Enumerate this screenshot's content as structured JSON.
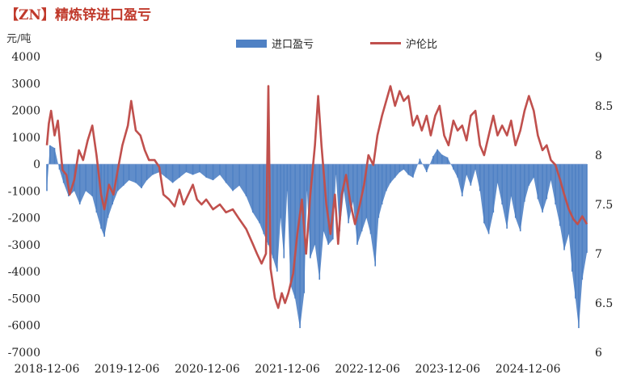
{
  "title": "【ZN】精炼锌进口盈亏",
  "unit_left": "元/吨",
  "colors": {
    "bar": "#4f81c4",
    "line": "#c0504d",
    "title": "#c0392b"
  },
  "chart_data": {
    "type": "bar+line",
    "x_tick_labels": [
      "2018-12-06",
      "2019-12-06",
      "2020-12-06",
      "2021-12-06",
      "2022-12-06",
      "2023-12-06",
      "2024-12-06"
    ],
    "x_range": [
      "2018-12-06",
      "2025-08-31"
    ],
    "y_left": {
      "label": "元/吨",
      "min": -7000,
      "max": 4000,
      "ticks": [
        4000,
        3000,
        2000,
        1000,
        0,
        -1000,
        -2000,
        -3000,
        -4000,
        -5000,
        -6000,
        -7000
      ]
    },
    "y_right": {
      "label": "",
      "min": 6,
      "max": 9,
      "ticks": [
        9,
        8.5,
        8,
        7.5,
        7,
        6.5,
        6
      ]
    },
    "grid": false,
    "legend_position": "top-center",
    "series": [
      {
        "name": "进口盈亏",
        "type": "bar",
        "axis": "left",
        "color": "#4f81c4",
        "points": [
          [
            "2018-12-06",
            -1000
          ],
          [
            "2018-12-20",
            700
          ],
          [
            "2019-01-10",
            600
          ],
          [
            "2019-02-01",
            -200
          ],
          [
            "2019-02-20",
            -700
          ],
          [
            "2019-03-15",
            -1200
          ],
          [
            "2019-04-10",
            -1000
          ],
          [
            "2019-05-05",
            -1500
          ],
          [
            "2019-06-01",
            -1000
          ],
          [
            "2019-07-01",
            -1200
          ],
          [
            "2019-07-20",
            -1800
          ],
          [
            "2019-08-10",
            -2400
          ],
          [
            "2019-08-25",
            -2700
          ],
          [
            "2019-09-10",
            -2000
          ],
          [
            "2019-10-01",
            -1500
          ],
          [
            "2019-10-25",
            -1000
          ],
          [
            "2019-11-20",
            -800
          ],
          [
            "2019-12-15",
            -600
          ],
          [
            "2020-01-15",
            -700
          ],
          [
            "2020-02-10",
            -900
          ],
          [
            "2020-03-05",
            -600
          ],
          [
            "2020-04-01",
            -400
          ],
          [
            "2020-05-01",
            -300
          ],
          [
            "2020-06-01",
            -500
          ],
          [
            "2020-07-01",
            -700
          ],
          [
            "2020-08-01",
            -500
          ],
          [
            "2020-09-01",
            -300
          ],
          [
            "2020-10-01",
            -400
          ],
          [
            "2020-11-01",
            -300
          ],
          [
            "2020-12-01",
            -500
          ],
          [
            "2021-01-01",
            -600
          ],
          [
            "2021-02-01",
            -400
          ],
          [
            "2021-03-01",
            -700
          ],
          [
            "2021-04-01",
            -1000
          ],
          [
            "2021-05-01",
            -800
          ],
          [
            "2021-06-01",
            -1200
          ],
          [
            "2021-07-01",
            -1800
          ],
          [
            "2021-08-01",
            -2200
          ],
          [
            "2021-08-20",
            -2600
          ],
          [
            "2021-09-10",
            -3000
          ],
          [
            "2021-10-01",
            -3500
          ],
          [
            "2021-10-20",
            -4000
          ],
          [
            "2021-11-05",
            -2000
          ],
          [
            "2021-11-20",
            -3500
          ],
          [
            "2021-12-05",
            -1000
          ],
          [
            "2021-12-20",
            -4500
          ],
          [
            "2022-01-10",
            -5000
          ],
          [
            "2022-02-01",
            -6100
          ],
          [
            "2022-02-20",
            -4800
          ],
          [
            "2022-03-05",
            -1000
          ],
          [
            "2022-03-20",
            -3500
          ],
          [
            "2022-04-10",
            -3000
          ],
          [
            "2022-05-01",
            -4300
          ],
          [
            "2022-05-20",
            -2500
          ],
          [
            "2022-06-10",
            -3000
          ],
          [
            "2022-07-01",
            -2800
          ],
          [
            "2022-07-15",
            -400
          ],
          [
            "2022-08-01",
            -2500
          ],
          [
            "2022-08-20",
            -1000
          ],
          [
            "2022-09-10",
            -2200
          ],
          [
            "2022-10-01",
            -1400
          ],
          [
            "2022-10-20",
            -3000
          ],
          [
            "2022-11-10",
            -2500
          ],
          [
            "2022-12-01",
            -2000
          ],
          [
            "2022-12-20",
            -2600
          ],
          [
            "2023-01-10",
            -3800
          ],
          [
            "2023-01-25",
            -2000
          ],
          [
            "2023-02-10",
            -1500
          ],
          [
            "2023-03-01",
            -1000
          ],
          [
            "2023-03-20",
            -700
          ],
          [
            "2023-04-10",
            -500
          ],
          [
            "2023-05-01",
            -300
          ],
          [
            "2023-05-20",
            -200
          ],
          [
            "2023-06-10",
            -400
          ],
          [
            "2023-07-01",
            -500
          ],
          [
            "2023-08-01",
            200
          ],
          [
            "2023-09-01",
            -300
          ],
          [
            "2023-10-01",
            300
          ],
          [
            "2023-10-20",
            550
          ],
          [
            "2023-11-10",
            350
          ],
          [
            "2023-12-05",
            250
          ],
          [
            "2024-01-01",
            -200
          ],
          [
            "2024-01-20",
            -500
          ],
          [
            "2024-02-10",
            -1200
          ],
          [
            "2024-03-01",
            -400
          ],
          [
            "2024-03-20",
            -800
          ],
          [
            "2024-04-10",
            -200
          ],
          [
            "2024-05-01",
            -1000
          ],
          [
            "2024-05-20",
            -2200
          ],
          [
            "2024-06-10",
            -2600
          ],
          [
            "2024-07-01",
            -1800
          ],
          [
            "2024-07-20",
            -700
          ],
          [
            "2024-08-10",
            -1500
          ],
          [
            "2024-09-01",
            -2400
          ],
          [
            "2024-09-20",
            -1200
          ],
          [
            "2024-10-10",
            -2000
          ],
          [
            "2024-11-01",
            -2500
          ],
          [
            "2024-11-20",
            -1400
          ],
          [
            "2024-12-10",
            -800
          ],
          [
            "2025-01-01",
            -500
          ],
          [
            "2025-01-20",
            -1300
          ],
          [
            "2025-02-10",
            -1800
          ],
          [
            "2025-03-01",
            -1300
          ],
          [
            "2025-03-20",
            -600
          ],
          [
            "2025-04-10",
            -1500
          ],
          [
            "2025-05-01",
            -2300
          ],
          [
            "2025-05-20",
            -3200
          ],
          [
            "2025-06-10",
            -2600
          ],
          [
            "2025-06-25",
            -4000
          ],
          [
            "2025-07-10",
            -5000
          ],
          [
            "2025-07-25",
            -6100
          ],
          [
            "2025-08-10",
            -4300
          ],
          [
            "2025-08-31",
            -3300
          ]
        ]
      },
      {
        "name": "沪伦比",
        "type": "line",
        "axis": "right",
        "color": "#c0504d",
        "points": [
          [
            "2018-12-06",
            8.1
          ],
          [
            "2018-12-15",
            8.32
          ],
          [
            "2018-12-25",
            8.45
          ],
          [
            "2019-01-10",
            8.2
          ],
          [
            "2019-01-25",
            8.35
          ],
          [
            "2019-02-15",
            7.85
          ],
          [
            "2019-03-05",
            7.8
          ],
          [
            "2019-03-20",
            7.6
          ],
          [
            "2019-04-10",
            7.75
          ],
          [
            "2019-05-01",
            8.05
          ],
          [
            "2019-05-20",
            7.95
          ],
          [
            "2019-06-10",
            8.15
          ],
          [
            "2019-07-01",
            8.3
          ],
          [
            "2019-07-20",
            8.0
          ],
          [
            "2019-08-10",
            7.6
          ],
          [
            "2019-08-25",
            7.45
          ],
          [
            "2019-09-15",
            7.7
          ],
          [
            "2019-10-05",
            7.6
          ],
          [
            "2019-10-25",
            7.85
          ],
          [
            "2019-11-15",
            8.1
          ],
          [
            "2019-12-10",
            8.3
          ],
          [
            "2019-12-25",
            8.55
          ],
          [
            "2020-01-15",
            8.25
          ],
          [
            "2020-02-05",
            8.2
          ],
          [
            "2020-02-25",
            8.05
          ],
          [
            "2020-03-15",
            7.95
          ],
          [
            "2020-04-10",
            7.95
          ],
          [
            "2020-05-01",
            7.88
          ],
          [
            "2020-05-20",
            7.6
          ],
          [
            "2020-06-15",
            7.55
          ],
          [
            "2020-07-10",
            7.48
          ],
          [
            "2020-08-01",
            7.65
          ],
          [
            "2020-08-20",
            7.5
          ],
          [
            "2020-09-10",
            7.6
          ],
          [
            "2020-10-01",
            7.7
          ],
          [
            "2020-10-20",
            7.55
          ],
          [
            "2020-11-10",
            7.5
          ],
          [
            "2020-12-01",
            7.55
          ],
          [
            "2021-01-01",
            7.45
          ],
          [
            "2021-02-01",
            7.5
          ],
          [
            "2021-03-01",
            7.42
          ],
          [
            "2021-04-01",
            7.45
          ],
          [
            "2021-05-01",
            7.35
          ],
          [
            "2021-06-01",
            7.25
          ],
          [
            "2021-07-01",
            7.1
          ],
          [
            "2021-07-20",
            7.0
          ],
          [
            "2021-08-10",
            6.9
          ],
          [
            "2021-08-30",
            7.0
          ],
          [
            "2021-09-10",
            8.7
          ],
          [
            "2021-09-20",
            6.85
          ],
          [
            "2021-10-10",
            6.55
          ],
          [
            "2021-10-25",
            6.45
          ],
          [
            "2021-11-10",
            6.6
          ],
          [
            "2021-11-25",
            6.5
          ],
          [
            "2021-12-10",
            6.6
          ],
          [
            "2022-01-01",
            6.8
          ],
          [
            "2022-01-20",
            7.2
          ],
          [
            "2022-02-10",
            7.55
          ],
          [
            "2022-03-01",
            7.0
          ],
          [
            "2022-03-20",
            7.6
          ],
          [
            "2022-04-10",
            8.1
          ],
          [
            "2022-04-25",
            8.6
          ],
          [
            "2022-05-10",
            8.1
          ],
          [
            "2022-06-01",
            7.5
          ],
          [
            "2022-06-20",
            7.2
          ],
          [
            "2022-07-10",
            7.6
          ],
          [
            "2022-07-25",
            7.1
          ],
          [
            "2022-08-10",
            7.6
          ],
          [
            "2022-08-30",
            7.8
          ],
          [
            "2022-09-20",
            7.5
          ],
          [
            "2022-10-10",
            7.3
          ],
          [
            "2022-11-01",
            7.5
          ],
          [
            "2022-11-20",
            7.7
          ],
          [
            "2022-12-10",
            8.0
          ],
          [
            "2023-01-01",
            7.9
          ],
          [
            "2023-01-20",
            8.2
          ],
          [
            "2023-02-10",
            8.4
          ],
          [
            "2023-03-01",
            8.55
          ],
          [
            "2023-03-20",
            8.7
          ],
          [
            "2023-04-10",
            8.5
          ],
          [
            "2023-05-01",
            8.65
          ],
          [
            "2023-05-20",
            8.55
          ],
          [
            "2023-06-10",
            8.6
          ],
          [
            "2023-07-01",
            8.3
          ],
          [
            "2023-07-20",
            8.4
          ],
          [
            "2023-08-10",
            8.25
          ],
          [
            "2023-09-01",
            8.4
          ],
          [
            "2023-09-20",
            8.2
          ],
          [
            "2023-10-10",
            8.4
          ],
          [
            "2023-10-30",
            8.5
          ],
          [
            "2023-11-20",
            8.2
          ],
          [
            "2023-12-10",
            8.1
          ],
          [
            "2024-01-01",
            8.35
          ],
          [
            "2024-01-20",
            8.25
          ],
          [
            "2024-02-10",
            8.3
          ],
          [
            "2024-03-01",
            8.15
          ],
          [
            "2024-03-20",
            8.4
          ],
          [
            "2024-04-10",
            8.45
          ],
          [
            "2024-05-01",
            8.1
          ],
          [
            "2024-05-20",
            8.0
          ],
          [
            "2024-06-10",
            8.2
          ],
          [
            "2024-07-01",
            8.4
          ],
          [
            "2024-07-20",
            8.2
          ],
          [
            "2024-08-10",
            8.3
          ],
          [
            "2024-09-01",
            8.2
          ],
          [
            "2024-09-20",
            8.35
          ],
          [
            "2024-10-10",
            8.1
          ],
          [
            "2024-11-01",
            8.25
          ],
          [
            "2024-11-20",
            8.45
          ],
          [
            "2024-12-10",
            8.6
          ],
          [
            "2025-01-01",
            8.45
          ],
          [
            "2025-01-20",
            8.2
          ],
          [
            "2025-02-10",
            8.05
          ],
          [
            "2025-03-01",
            8.1
          ],
          [
            "2025-03-20",
            7.95
          ],
          [
            "2025-04-10",
            7.9
          ],
          [
            "2025-05-01",
            7.75
          ],
          [
            "2025-05-20",
            7.6
          ],
          [
            "2025-06-10",
            7.45
          ],
          [
            "2025-07-01",
            7.35
          ],
          [
            "2025-07-20",
            7.3
          ],
          [
            "2025-08-10",
            7.38
          ],
          [
            "2025-08-31",
            7.3
          ]
        ]
      }
    ]
  }
}
